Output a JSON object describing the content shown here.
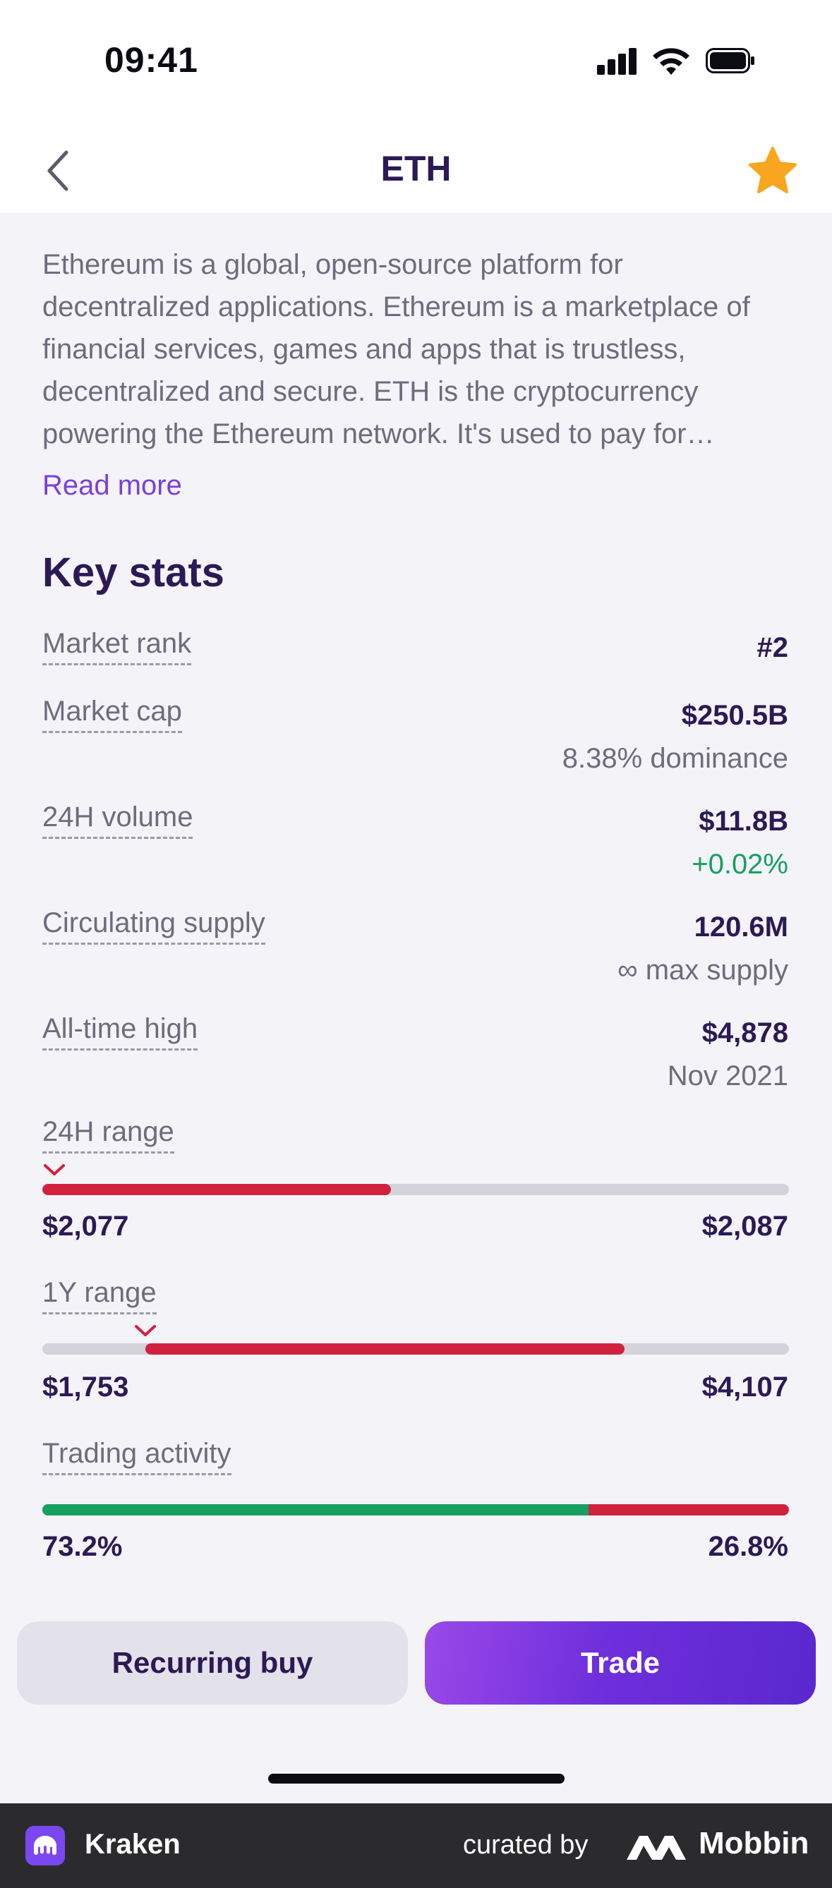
{
  "status_bar": {
    "time": "09:41"
  },
  "nav": {
    "title": "ETH"
  },
  "description": {
    "text": "Ethereum is a global, open-source platform for decentralized applications. Ethereum is a marketplace of financial services, games and apps that is trustless, decentralized and secure. ETH is the cryptocurrency powering the Ethereum network. It's used to pay for…",
    "read_more": "Read more"
  },
  "key_stats": {
    "title": "Key stats",
    "market_rank": {
      "label": "Market rank",
      "value": "#2"
    },
    "market_cap": {
      "label": "Market cap",
      "value": "$250.5B",
      "sub": "8.38% dominance"
    },
    "volume_24h": {
      "label": "24H volume",
      "value": "$11.8B",
      "sub": "+0.02%"
    },
    "circulating_supply": {
      "label": "Circulating supply",
      "value": "120.6M",
      "sub": "∞ max supply"
    },
    "all_time_high": {
      "label": "All-time high",
      "value": "$4,878",
      "sub": "Nov 2021"
    },
    "range_24h": {
      "label": "24H range",
      "low": "$2,077",
      "high": "$2,087",
      "fill_start": 0.0,
      "fill_end": 0.467,
      "marker": 0.0
    },
    "range_1y": {
      "label": "1Y range",
      "low": "$1,753",
      "high": "$4,107",
      "fill_start": 0.138,
      "fill_end": 0.78,
      "marker": 0.138
    },
    "trading_activity": {
      "label": "Trading activity",
      "buy_pct": "73.2%",
      "sell_pct": "26.8%",
      "buy_fraction": 0.732
    }
  },
  "actions": {
    "recurring_buy": "Recurring buy",
    "trade": "Trade"
  },
  "footer": {
    "app_name": "Kraken",
    "curated_by": "curated by",
    "brand": "Mobbin"
  },
  "colors": {
    "accent": "#7a3fe0",
    "title": "#2b1a55",
    "negative": "#d2213f",
    "positive": "#15a060"
  }
}
